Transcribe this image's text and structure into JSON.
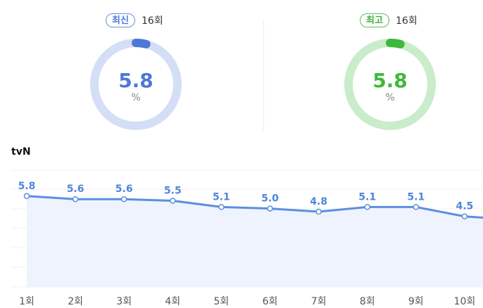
{
  "latest": {
    "badge": "최신",
    "episode": "16회",
    "value": "5.8",
    "unit": "%",
    "color": "#4e78d8",
    "track": "#d5def7",
    "fraction": 0.04
  },
  "best": {
    "badge": "최고",
    "episode": "16회",
    "value": "5.8",
    "unit": "%",
    "color": "#3fb83c",
    "track": "#c9ecca",
    "fraction": 0.04
  },
  "chart_data": {
    "type": "area",
    "title": "tvN",
    "categories": [
      "1회",
      "2회",
      "3회",
      "4회",
      "5회",
      "6회",
      "7회",
      "8회",
      "9회",
      "10회"
    ],
    "values": [
      5.8,
      5.6,
      5.6,
      5.5,
      5.1,
      5.0,
      4.8,
      5.1,
      5.1,
      4.5
    ],
    "line_color": "#5b8fe0",
    "fill_color": "#eef3fd",
    "grid": true
  }
}
